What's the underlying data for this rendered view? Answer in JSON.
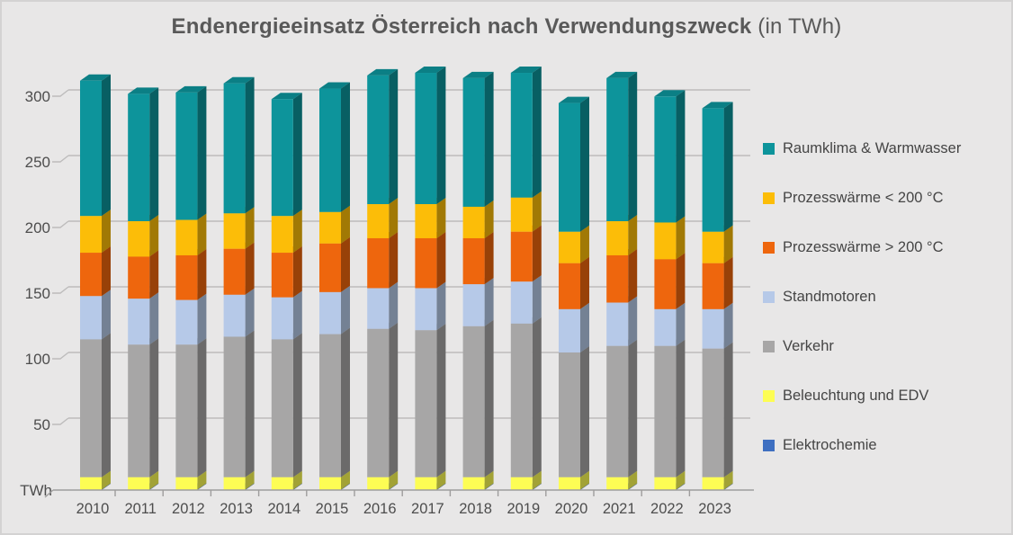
{
  "title": {
    "main": "Endenergieeinsatz Österreich nach Verwendungszweck",
    "unit_suffix": "(in TWh)"
  },
  "colors": {
    "background": "#E8E7E7",
    "gridline": "#BDBCBC",
    "axis_line": "#9E9D9D",
    "axis_text": "#4d4d4d",
    "title_text": "#595959",
    "legend_text": "#454545"
  },
  "chart_data": {
    "type": "bar",
    "variant": "3d-stacked-column",
    "title": "Endenergieeinsatz Österreich nach Verwendungszweck (in TWh)",
    "unit": "TWh",
    "xlabel": "",
    "ylabel": "TWh",
    "ylim": [
      0,
      320
    ],
    "yticks": [
      50,
      100,
      150,
      200,
      250,
      300
    ],
    "grid": true,
    "legend_position": "right",
    "legend_order": "reverse-of-series",
    "categories": [
      "2010",
      "2011",
      "2012",
      "2013",
      "2014",
      "2015",
      "2016",
      "2017",
      "2018",
      "2019",
      "2020",
      "2021",
      "2022",
      "2023"
    ],
    "series": [
      {
        "name": "Elektrochemie",
        "color": "#3E6FC1",
        "values": [
          0.3,
          0.3,
          0.3,
          0.3,
          0.3,
          0.3,
          0.3,
          0.3,
          0.3,
          0.3,
          0.3,
          0.3,
          0.3,
          0.3
        ]
      },
      {
        "name": "Beleuchtung und EDV",
        "color": "#FDFD54",
        "values": [
          9.5,
          9.5,
          9.5,
          9.5,
          9.5,
          9.5,
          9.5,
          9.5,
          9.5,
          9.5,
          9.5,
          9.5,
          9.5,
          9.5
        ]
      },
      {
        "name": "Verkehr",
        "color": "#A7A6A6",
        "values": [
          105,
          101,
          101,
          107,
          105,
          109,
          113,
          112,
          115,
          117,
          95,
          100,
          100,
          98
        ]
      },
      {
        "name": "Standmotoren",
        "color": "#B6C9E8",
        "values": [
          33,
          35,
          34,
          32,
          32,
          32,
          31,
          32,
          32,
          32,
          33,
          33,
          28,
          30
        ]
      },
      {
        "name": "Prozesswärme > 200 °C",
        "color": "#EE660D",
        "values": [
          33,
          32,
          34,
          35,
          34,
          37,
          38,
          38,
          35,
          38,
          35,
          36,
          38,
          35
        ]
      },
      {
        "name": "Prozesswärme < 200 °C",
        "color": "#FCBD08",
        "values": [
          28,
          27,
          27,
          27,
          28,
          24,
          26,
          26,
          24,
          26,
          24,
          26,
          28,
          24
        ]
      },
      {
        "name": "Raumklima & Warmwasser",
        "color": "#0D949B",
        "values": [
          103,
          97,
          97,
          99,
          89,
          94,
          98,
          100,
          98,
          95,
          98,
          109,
          96,
          94
        ]
      }
    ],
    "totals_approx": [
      312,
      302,
      303,
      310,
      298,
      306,
      316,
      318,
      314,
      318,
      295,
      314,
      300,
      291
    ]
  }
}
